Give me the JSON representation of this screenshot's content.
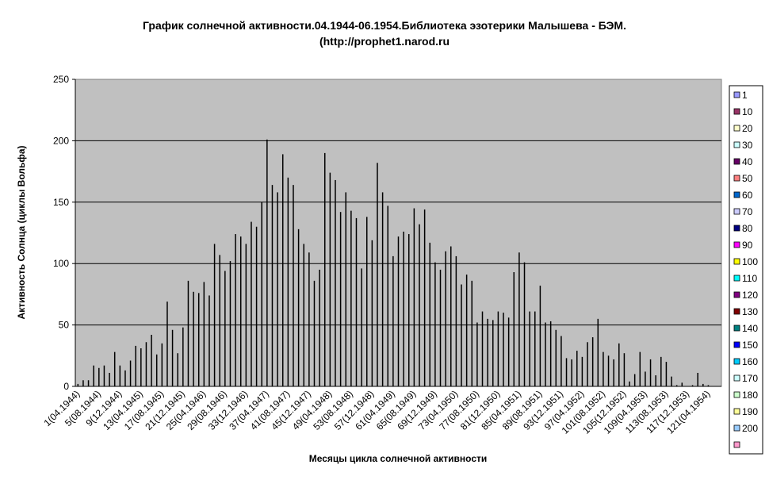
{
  "chart_data": {
    "type": "bar",
    "title": "График солнечной активности.04.1944-06.1954.Библиотека эзотерики Малышева - БЭМ.",
    "subtitle": "(http://prophet1.narod.ru",
    "x_label": "Месяцы цикла солнечной активности",
    "y_label": "Активность Солнца (циклы Вольфа)",
    "categories": [
      "1(04.1944)",
      null,
      null,
      null,
      "5(08.1944)",
      null,
      null,
      null,
      "9(12.1944)",
      null,
      null,
      null,
      "13(04.1945)",
      null,
      null,
      null,
      "17(08.1945)",
      null,
      null,
      null,
      "21(12.1945)",
      null,
      null,
      null,
      "25(04.1946)",
      null,
      null,
      null,
      "29(08.1946)",
      null,
      null,
      null,
      "33(12.1946)",
      null,
      null,
      null,
      "37(04.1947)",
      null,
      null,
      null,
      "41(08.1947)",
      null,
      null,
      null,
      "45(12.1947)",
      null,
      null,
      null,
      "49(04.1948)",
      null,
      null,
      null,
      "53(08.1948)",
      null,
      null,
      null,
      "57(12.1948)",
      null,
      null,
      null,
      "61(04.1949)",
      null,
      null,
      null,
      "65(08.1949)",
      null,
      null,
      null,
      "69(12.1949)",
      null,
      null,
      null,
      "73(04.1950)",
      null,
      null,
      null,
      "77(08.1950)",
      null,
      null,
      null,
      "81(12.1950)",
      null,
      null,
      null,
      "85(04.1951)",
      null,
      null,
      null,
      "89(08.1951)",
      null,
      null,
      null,
      "93(12.1951)",
      null,
      null,
      null,
      "97(04.1952)",
      null,
      null,
      null,
      "101(08.1952)",
      null,
      null,
      null,
      "105(12.1952)",
      null,
      null,
      null,
      "109(04.1953)",
      null,
      null,
      null,
      "113(08.1953)",
      null,
      null,
      null,
      "117(12.1953)",
      null,
      null,
      null,
      "121(04.1954)",
      null,
      null
    ],
    "values": [
      2,
      5,
      5,
      17,
      15,
      17,
      11,
      28,
      17,
      13,
      21,
      33,
      31,
      36,
      42,
      26,
      35,
      69,
      46,
      27,
      48,
      86,
      77,
      76,
      85,
      74,
      116,
      107,
      94,
      102,
      124,
      122,
      116,
      134,
      130,
      150,
      201,
      164,
      158,
      189,
      170,
      164,
      128,
      116,
      109,
      86,
      95,
      190,
      174,
      168,
      142,
      158,
      143,
      137,
      96,
      138,
      119,
      182,
      158,
      147,
      106,
      122,
      126,
      124,
      145,
      132,
      144,
      117,
      101,
      95,
      110,
      114,
      106,
      83,
      91,
      86,
      52,
      61,
      55,
      54,
      61,
      60,
      56,
      93,
      109,
      101,
      61,
      61,
      82,
      52,
      53,
      46,
      41,
      23,
      22,
      29,
      24,
      36,
      40,
      55,
      28,
      25,
      22,
      35,
      27,
      4,
      10,
      28,
      12,
      22,
      9,
      24,
      20,
      8,
      1,
      3,
      0,
      1,
      11,
      2,
      1,
      0,
      0
    ],
    "color": "#000000",
    "ylim": [
      0,
      250
    ],
    "yticks": [
      0,
      50,
      100,
      150,
      200,
      250
    ],
    "grid": true,
    "legend": [
      {
        "name": "1",
        "color": "#9999ff"
      },
      {
        "name": "10",
        "color": "#993366"
      },
      {
        "name": "20",
        "color": "#ffffcc"
      },
      {
        "name": "30",
        "color": "#ccffff"
      },
      {
        "name": "40",
        "color": "#660066"
      },
      {
        "name": "50",
        "color": "#ff8080"
      },
      {
        "name": "60",
        "color": "#0066cc"
      },
      {
        "name": "70",
        "color": "#ccccff"
      },
      {
        "name": "80",
        "color": "#000080"
      },
      {
        "name": "90",
        "color": "#ff00ff"
      },
      {
        "name": "100",
        "color": "#ffff00"
      },
      {
        "name": "110",
        "color": "#00ffff"
      },
      {
        "name": "120",
        "color": "#800080"
      },
      {
        "name": "130",
        "color": "#800000"
      },
      {
        "name": "140",
        "color": "#008080"
      },
      {
        "name": "150",
        "color": "#0000ff"
      },
      {
        "name": "160",
        "color": "#00ccff"
      },
      {
        "name": "170",
        "color": "#ccffff"
      },
      {
        "name": "180",
        "color": "#ccffcc"
      },
      {
        "name": "190",
        "color": "#ffff99"
      },
      {
        "name": "200",
        "color": "#99ccff"
      },
      {
        "color": "#ff99cc"
      }
    ],
    "legend_position": "right"
  }
}
